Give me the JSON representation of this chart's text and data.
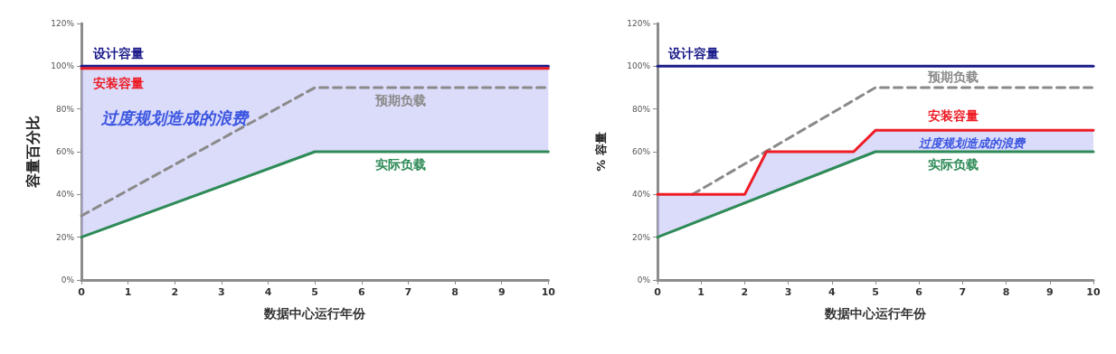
{
  "chart_data": [
    {
      "type": "line",
      "xlabel": "数据中心运行年份",
      "ylabel": "容量百分比",
      "xlim": [
        0,
        10
      ],
      "xticks": [
        0,
        1,
        2,
        3,
        4,
        5,
        6,
        7,
        8,
        9,
        10
      ],
      "ylim": [
        0,
        120
      ],
      "yticks": [
        {
          "value": 0,
          "label": "0%"
        },
        {
          "value": 20,
          "label": "20%"
        },
        {
          "value": 40,
          "label": "40%"
        },
        {
          "value": 60,
          "label": "60%"
        },
        {
          "value": 80,
          "label": "80%"
        },
        {
          "value": 100,
          "label": "100%"
        },
        {
          "value": 120,
          "label": "120%"
        }
      ],
      "grid": false,
      "legend": false,
      "marker": "none",
      "annotations": [
        "过度规划造成的浪费"
      ],
      "series": [
        {
          "name": "设计容量",
          "color": "#1c1c8c",
          "x": [
            0,
            10
          ],
          "values": [
            100,
            100
          ]
        },
        {
          "name": "安装容量",
          "color": "#ee1c25",
          "x": [
            0,
            5,
            10
          ],
          "values": [
            99,
            99,
            99
          ],
          "lower": [
            20,
            60,
            60
          ],
          "upper": [
            99,
            99,
            99
          ]
        },
        {
          "name": "预期负载",
          "color": "#8a8a8a",
          "line_style": "dashed",
          "x": [
            0,
            5,
            10
          ],
          "values": [
            30,
            90,
            90
          ]
        },
        {
          "name": "实际负载",
          "color": "#2e8b57",
          "x": [
            0,
            5,
            10
          ],
          "values": [
            20,
            60,
            60
          ]
        }
      ]
    },
    {
      "type": "line",
      "xlabel": "数据中心运行年份",
      "ylabel": "% 容量",
      "xlim": [
        0,
        10
      ],
      "xticks": [
        0,
        1,
        2,
        3,
        4,
        5,
        6,
        7,
        8,
        9,
        10
      ],
      "ylim": [
        0,
        120
      ],
      "yticks": [
        {
          "value": 0,
          "label": "0%"
        },
        {
          "value": 20,
          "label": "20%"
        },
        {
          "value": 40,
          "label": "40%"
        },
        {
          "value": 60,
          "label": "60%"
        },
        {
          "value": 80,
          "label": "80%"
        },
        {
          "value": 100,
          "label": "100%"
        },
        {
          "value": 120,
          "label": "120%"
        }
      ],
      "grid": false,
      "legend": false,
      "marker": "none",
      "annotations": [
        "过度规划造成的浪费"
      ],
      "series": [
        {
          "name": "设计容量",
          "color": "#1c1c8c",
          "x": [
            0,
            10
          ],
          "values": [
            100,
            100
          ]
        },
        {
          "name": "预期负载",
          "color": "#8a8a8a",
          "line_style": "dashed",
          "x": [
            0.8,
            5,
            10
          ],
          "values": [
            40,
            90,
            90
          ]
        },
        {
          "name": "安装容量",
          "color": "#ee1c25",
          "x": [
            0,
            2,
            2.5,
            4.5,
            5,
            10
          ],
          "values": [
            40,
            40,
            60,
            60,
            70,
            70
          ],
          "lower": [
            20,
            36,
            40,
            56,
            60,
            60
          ],
          "upper": [
            40,
            40,
            60,
            60,
            70,
            70
          ]
        },
        {
          "name": "实际负载",
          "color": "#2e8b57",
          "x": [
            0,
            5,
            10
          ],
          "values": [
            20,
            60,
            60
          ]
        }
      ]
    }
  ]
}
